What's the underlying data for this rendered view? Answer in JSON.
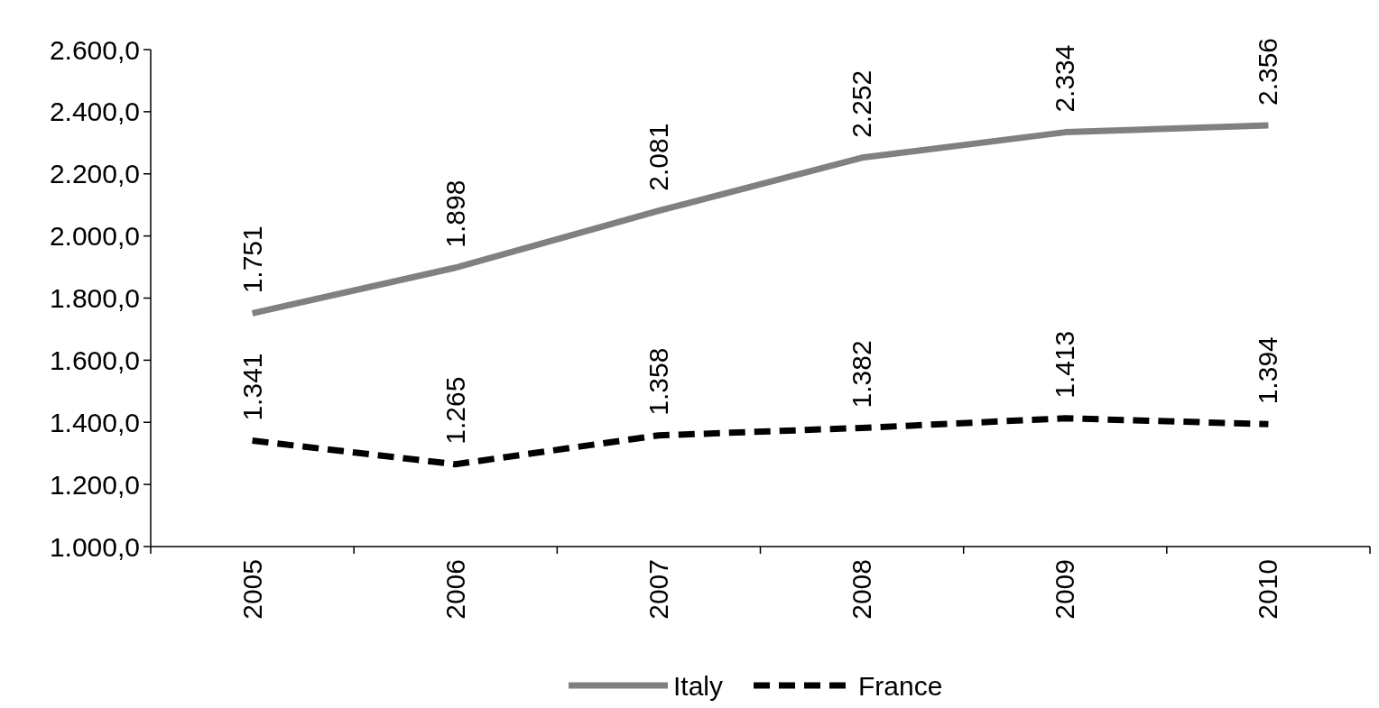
{
  "chart_data": {
    "type": "line",
    "categories": [
      "2005",
      "2006",
      "2007",
      "2008",
      "2009",
      "2010"
    ],
    "series": [
      {
        "name": "Italy",
        "color": "#808080",
        "line_style": "solid",
        "values": [
          1751,
          1898,
          2081,
          2252,
          2334,
          2356
        ],
        "value_labels": [
          "1.751",
          "1.898",
          "2.081",
          "2.252",
          "2.334",
          "2.356"
        ]
      },
      {
        "name": "France",
        "color": "#000000",
        "line_style": "dashed",
        "values": [
          1341,
          1265,
          1358,
          1382,
          1413,
          1394
        ],
        "value_labels": [
          "1.341",
          "1.265",
          "1.358",
          "1.382",
          "1.413",
          "1.394"
        ]
      }
    ],
    "ylim": [
      1000,
      2600
    ],
    "yticks": [
      {
        "value": 1000,
        "label": "1.000,0"
      },
      {
        "value": 1200,
        "label": "1.200,0"
      },
      {
        "value": 1400,
        "label": "1.400,0"
      },
      {
        "value": 1600,
        "label": "1.600,0"
      },
      {
        "value": 1800,
        "label": "1.800,0"
      },
      {
        "value": 2000,
        "label": "2.000,0"
      },
      {
        "value": 2200,
        "label": "2.200,0"
      },
      {
        "value": 2400,
        "label": "2.400,0"
      },
      {
        "value": 2600,
        "label": "2.600,0"
      }
    ],
    "grid": false,
    "legend": "bottom",
    "marker": "none"
  }
}
